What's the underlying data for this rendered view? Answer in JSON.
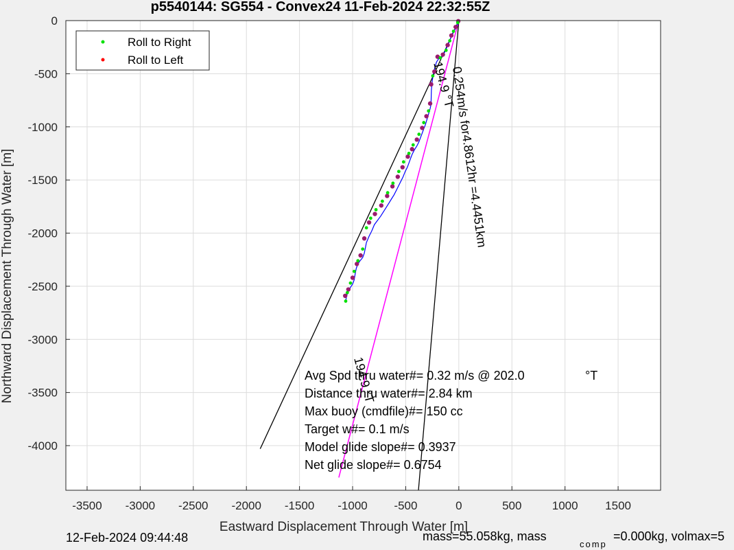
{
  "chart_data": {
    "type": "line",
    "title": "p5540144: SG554 - Convex24 11-Feb-2024 22:32:55Z",
    "xlabel": "Eastward Displacement Through Water [m]",
    "ylabel": "Northward Displacement Through Water [m]",
    "xlim": [
      -3700,
      1900
    ],
    "ylim": [
      -4420,
      0
    ],
    "xticks": [
      -3500,
      -3000,
      -2500,
      -2000,
      -1500,
      -1000,
      -500,
      0,
      500,
      1000,
      1500
    ],
    "yticks": [
      0,
      -500,
      -1000,
      -1500,
      -2000,
      -2500,
      -3000,
      -3500,
      -4000
    ],
    "grid": true,
    "legend": {
      "placement": "top-left",
      "entries": [
        {
          "label": "Roll to Right",
          "color": "#00e000"
        },
        {
          "label": "Roll to Left",
          "color": "#ff0000"
        }
      ]
    },
    "track": {
      "color": "#0000ff",
      "x": [
        0,
        -15,
        -35,
        -60,
        -75,
        -90,
        -110,
        -130,
        -150,
        -170,
        -190,
        -210,
        -225,
        -240,
        -250,
        -258,
        -260,
        -262,
        -270,
        -285,
        -300,
        -315,
        -330,
        -345,
        -360,
        -375,
        -395,
        -420,
        -440,
        -455,
        -470,
        -485,
        -505,
        -525,
        -545,
        -565,
        -585,
        -610,
        -635,
        -660,
        -685,
        -710,
        -735,
        -765,
        -795,
        -820,
        -845,
        -870,
        -880,
        -890,
        -905,
        -930,
        -950,
        -965,
        -975,
        -985,
        -1000,
        -1020,
        -1035,
        -1050,
        -1060,
        -1065
      ],
      "y": [
        0,
        -40,
        -80,
        -120,
        -160,
        -200,
        -245,
        -290,
        -330,
        -345,
        -360,
        -390,
        -440,
        -500,
        -570,
        -650,
        -720,
        -790,
        -830,
        -880,
        -930,
        -980,
        -1020,
        -1060,
        -1100,
        -1140,
        -1180,
        -1220,
        -1260,
        -1300,
        -1340,
        -1380,
        -1420,
        -1470,
        -1510,
        -1550,
        -1590,
        -1640,
        -1680,
        -1720,
        -1760,
        -1800,
        -1840,
        -1880,
        -1920,
        -1980,
        -2030,
        -2090,
        -2140,
        -2190,
        -2230,
        -2260,
        -2290,
        -2330,
        -2380,
        -2440,
        -2480,
        -2510,
        -2540,
        -2570,
        -2610,
        -2640
      ]
    },
    "roll_right_points": {
      "x": [
        -10,
        -50,
        -85,
        -120,
        -175,
        -245,
        -285,
        -330,
        -375,
        -430,
        -470,
        -520,
        -565,
        -620,
        -670,
        -720,
        -780,
        -830,
        -870,
        -905,
        -950,
        -985,
        -1020,
        -1050,
        -1065
      ],
      "y": [
        -20,
        -100,
        -190,
        -280,
        -350,
        -520,
        -850,
        -960,
        -1070,
        -1170,
        -1250,
        -1330,
        -1420,
        -1530,
        -1620,
        -1700,
        -1780,
        -1860,
        -1950,
        -2150,
        -2260,
        -2360,
        -2470,
        -2560,
        -2640
      ]
    },
    "roll_left_points": {
      "x": [
        -5,
        -30,
        -70,
        -105,
        -150,
        -200,
        -230,
        -260,
        -270,
        -305,
        -345,
        -395,
        -440,
        -480,
        -530,
        -575,
        -625,
        -675,
        -730,
        -790,
        -845,
        -890,
        -925,
        -960,
        -1000,
        -1040,
        -1070
      ],
      "y": [
        -5,
        -60,
        -140,
        -230,
        -320,
        -340,
        -480,
        -600,
        -780,
        -900,
        -1010,
        -1120,
        -1210,
        -1280,
        -1380,
        -1470,
        -1560,
        -1650,
        -1740,
        -1820,
        -1900,
        -2050,
        -2210,
        -2290,
        -2420,
        -2530,
        -2590
      ]
    },
    "black_lines": [
      {
        "x": [
          0,
          -1870
        ],
        "y": [
          0,
          -4030
        ]
      },
      {
        "x": [
          0,
          -380
        ],
        "y": [
          0,
          -4420
        ]
      }
    ],
    "magenta_line": {
      "x": [
        0,
        -1130
      ],
      "y": [
        0,
        -4300
      ],
      "color": "#ff00ff"
    },
    "annotations": [
      {
        "text": "0.254m/s for4.8612hr =4.4451km"
      },
      {
        "text": "194.9 °T"
      },
      {
        "text": "194.9 °T"
      },
      {
        "text": "Avg Spd thru water#=  0.32 m/s @ 202.0"
      },
      {
        "text": "°T"
      },
      {
        "text": "Distance thru water#=  2.84 km"
      },
      {
        "text": "Max buoy (cmdfile)#= 150 cc"
      },
      {
        "text": "Target w#= 0.1 m/s"
      },
      {
        "text": "Model glide slope#= 0.3937"
      },
      {
        "text": "Net glide slope#= 0.6754"
      }
    ]
  },
  "footer": {
    "timestamp": "12-Feb-2024 09:44:48",
    "mass_text": "mass=55.058kg, mass",
    "comp_sub": "comp",
    "mass_rest": "=0.000kg, volmax=5"
  }
}
